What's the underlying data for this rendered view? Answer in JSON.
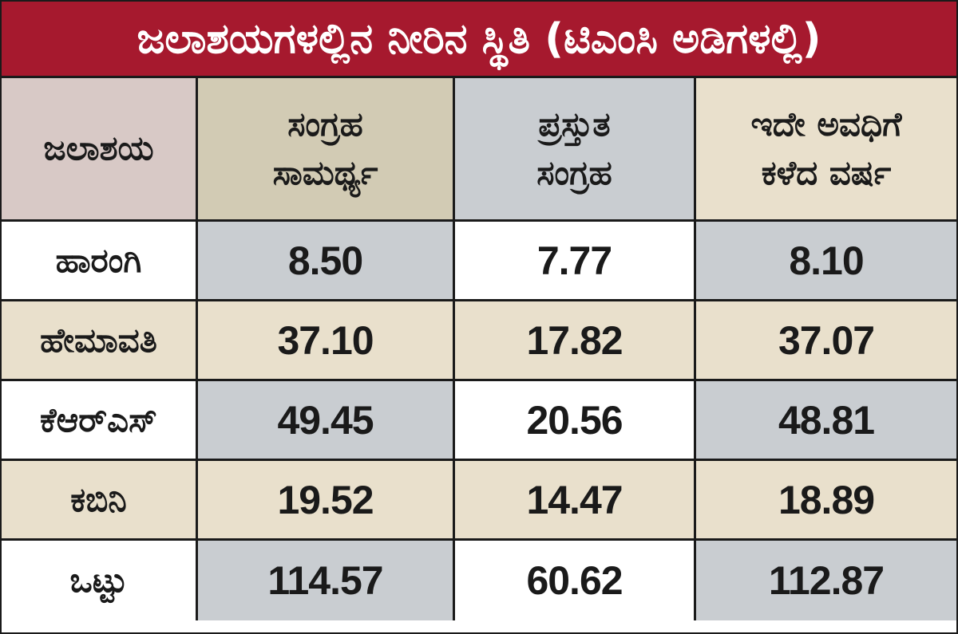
{
  "title": "ಜಲಾಶಯಗಳಲ್ಲಿನ ನೀರಿನ ಸ್ಥಿತಿ (ಟಿಎಂಸಿ ಅಡಿಗಳಲ್ಲಿ)",
  "colors": {
    "title_bg": "#a6192e",
    "title_text": "#ffffff",
    "header_name_bg": "#d8c9c6",
    "header_capacity_bg": "#d2cbb4",
    "header_current_bg": "#c9cdd1",
    "header_lastyear_bg": "#e9e0cc",
    "cell_grey": "#c9cdd1",
    "cell_beige": "#e9e0cc",
    "cell_white": "#ffffff",
    "border": "#1a1a1a"
  },
  "chart_data": {
    "type": "table",
    "title": "ಜಲಾಶಯಗಳಲ್ಲಿನ ನೀರಿನ ಸ್ಥಿತಿ (ಟಿಎಂಸಿ ಅಡಿಗಳಲ್ಲಿ)",
    "columns": [
      {
        "line1": "ಜಲಾಶಯ",
        "line2": ""
      },
      {
        "line1": "ಸಂಗ್ರಹ",
        "line2": "ಸಾಮರ್ಥ್ಯ"
      },
      {
        "line1": "ಪ್ರಸ್ತುತ",
        "line2": "ಸಂಗ್ರಹ"
      },
      {
        "line1": "ಇದೇ ಅವಧಿಗೆ",
        "line2": "ಕಳೆದ ವರ್ಷ"
      }
    ],
    "rows": [
      {
        "name": "ಹಾರಂಗಿ",
        "capacity": "8.50",
        "current": "7.77",
        "last_year": "8.10"
      },
      {
        "name": "ಹೇಮಾವತಿ",
        "capacity": "37.10",
        "current": "17.82",
        "last_year": "37.07"
      },
      {
        "name": "ಕೆಆರ್‌ಎಸ್",
        "capacity": "49.45",
        "current": "20.56",
        "last_year": "48.81"
      },
      {
        "name": "ಕಬಿನಿ",
        "capacity": "19.52",
        "current": "14.47",
        "last_year": "18.89"
      },
      {
        "name": "ಒಟ್ಟು",
        "capacity": "114.57",
        "current": "60.62",
        "last_year": "112.87"
      }
    ]
  }
}
